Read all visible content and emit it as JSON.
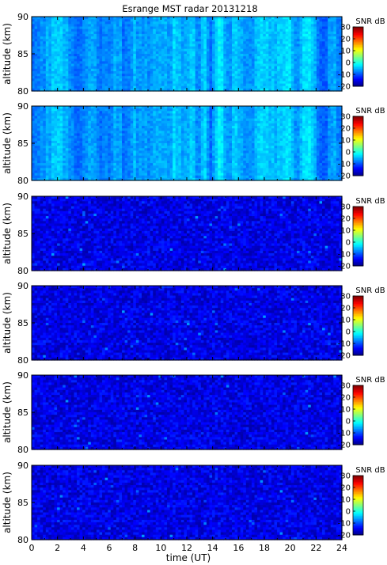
{
  "title": "Esrange MST radar 20131218",
  "xlabel": "time (UT)",
  "ylabel": "altitude (km)",
  "colorbar_label": "SNR dB",
  "colormap": "jet",
  "chart_data": {
    "type": "heatmap",
    "title": "Esrange MST radar 20131218",
    "xlabel": "time (UT)",
    "ylabel": "altitude (km)",
    "xlim": [
      0,
      24
    ],
    "ylim": [
      80,
      90
    ],
    "x_ticks": [
      "0",
      "2",
      "4",
      "6",
      "8",
      "10",
      "12",
      "14",
      "16",
      "18",
      "20",
      "22",
      "24"
    ],
    "y_ticks": [
      "80",
      "85",
      "90"
    ],
    "colorbar": {
      "label": "SNR dB",
      "min": -20,
      "max": 30,
      "ticks": [
        "-20",
        "-10",
        "0",
        "10",
        "20",
        "30"
      ]
    },
    "panels": [
      {
        "panel": 1,
        "approx_mean_snr_db": -8,
        "note": "higher background with vertical bands"
      },
      {
        "panel": 2,
        "approx_mean_snr_db": -8,
        "note": "higher background with vertical bands"
      },
      {
        "panel": 3,
        "approx_mean_snr_db": -15
      },
      {
        "panel": 4,
        "approx_mean_snr_db": -15
      },
      {
        "panel": 5,
        "approx_mean_snr_db": -15
      },
      {
        "panel": 6,
        "approx_mean_snr_db": -15
      }
    ]
  }
}
